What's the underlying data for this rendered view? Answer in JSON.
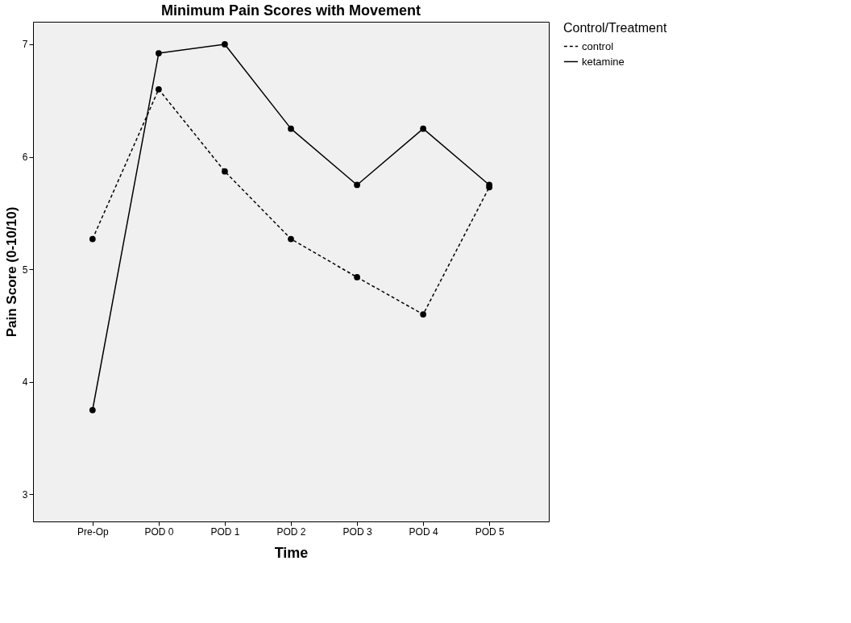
{
  "chart_data": {
    "type": "line",
    "title": "Minimum Pain Scores with Movement",
    "xlabel": "Time",
    "ylabel": "Pain Score (0-10/10)",
    "legend_title": "Control/Treatment",
    "categories": [
      "Pre-Op",
      "POD 0",
      "POD 1",
      "POD 2",
      "POD 3",
      "POD 4",
      "POD 5"
    ],
    "series": [
      {
        "name": "control",
        "color": "#000000",
        "line_style": "dashed",
        "values": [
          5.27,
          6.6,
          5.87,
          5.27,
          4.93,
          4.6,
          5.73
        ]
      },
      {
        "name": "ketamine",
        "color": "#000000",
        "line_style": "solid",
        "values": [
          3.75,
          6.92,
          7.0,
          6.25,
          5.75,
          6.25,
          5.75
        ]
      }
    ],
    "ylim": [
      2.76,
      7.2
    ],
    "yticks": [
      3,
      4,
      5,
      6,
      7
    ],
    "grid": false,
    "legend": "top right",
    "marker": "circle"
  }
}
